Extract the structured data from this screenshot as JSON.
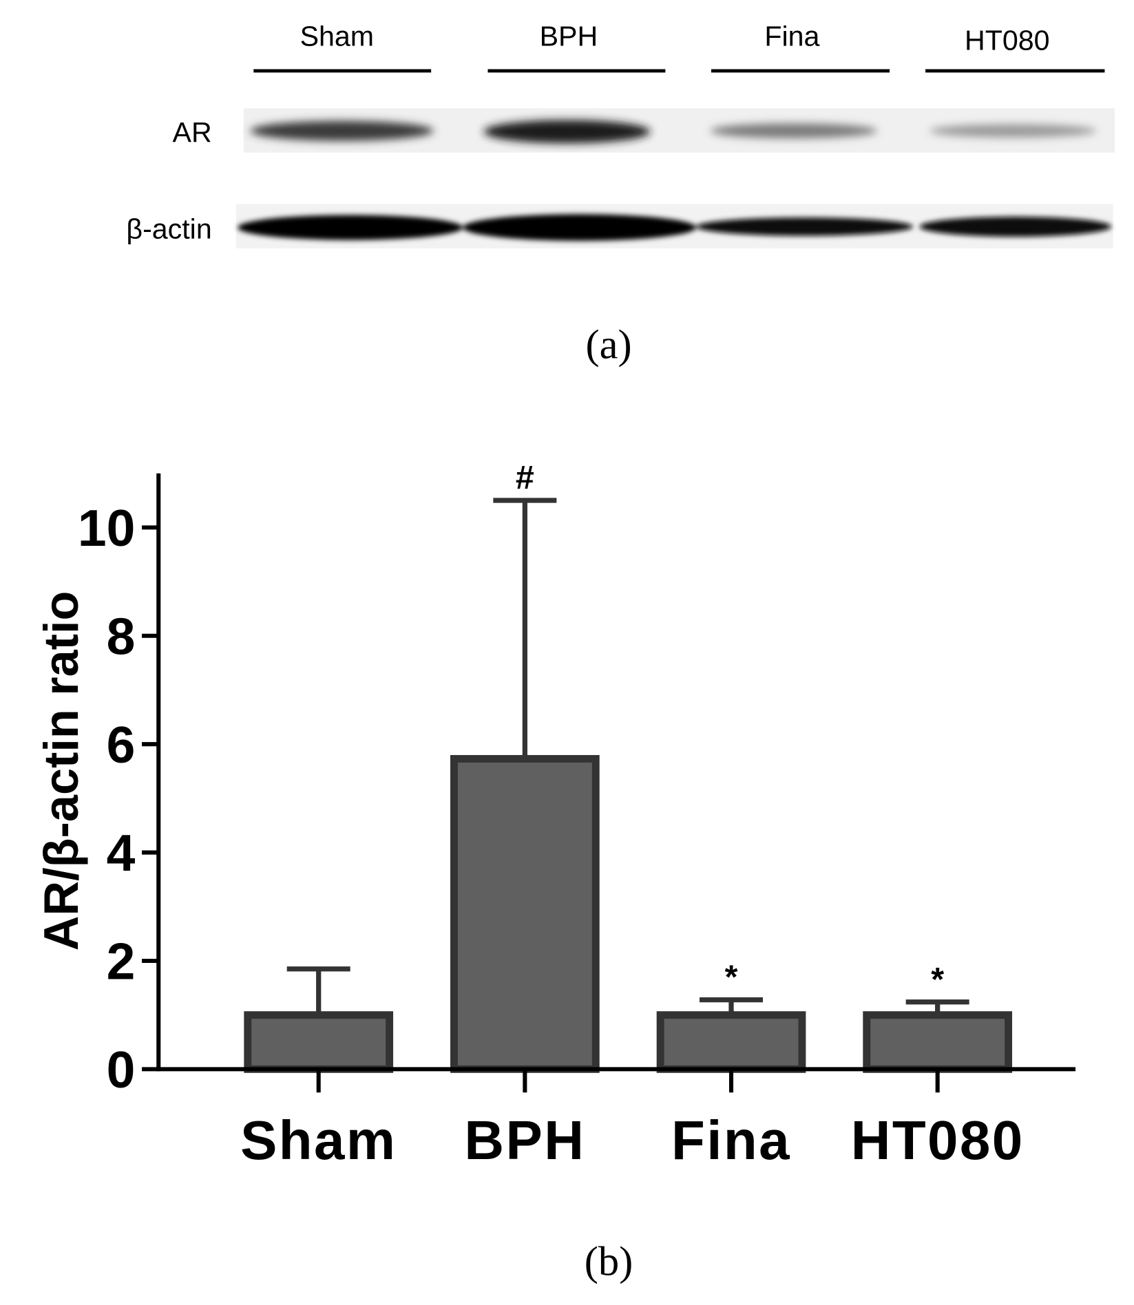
{
  "panel_a": {
    "lanes": [
      "Sham",
      "BPH",
      "Fina",
      "HT080"
    ],
    "rows": [
      "AR",
      "β-actin"
    ],
    "caption": "(a)"
  },
  "chart_data": {
    "type": "bar",
    "caption": "(b)",
    "y_label": "AR/β-actin ratio",
    "categories": [
      "Sham",
      "BPH",
      "Fina",
      "HT080"
    ],
    "values": [
      1.0,
      5.73,
      1.0,
      1.0
    ],
    "errors": [
      0.85,
      4.77,
      0.28,
      0.24
    ],
    "annotations": [
      null,
      "#",
      "*",
      "*"
    ],
    "color": "#606060",
    "ylim": [
      0,
      11
    ],
    "yticks": [
      0,
      2,
      4,
      6,
      8,
      10
    ]
  }
}
